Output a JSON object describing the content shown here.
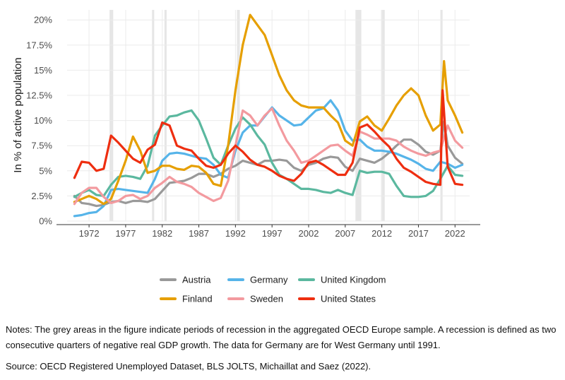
{
  "chart_data": {
    "type": "line",
    "title": "",
    "xlabel": "",
    "ylabel": "In % of active population",
    "xlim": [
      1969,
      2024
    ],
    "ylim": [
      0,
      21
    ],
    "x_ticks": [
      1972,
      1977,
      1982,
      1987,
      1992,
      1997,
      2002,
      2007,
      2012,
      2017,
      2022
    ],
    "y_ticks": [
      0,
      2.5,
      5,
      7.5,
      10,
      12.5,
      15,
      17.5,
      20
    ],
    "y_tick_labels": [
      "0%",
      "2.5%",
      "5%",
      "7.5%",
      "10%",
      "12.5%",
      "15%",
      "17.5%",
      "20%"
    ],
    "grid": true,
    "legend_position": "bottom",
    "recessions": [
      [
        1974.8,
        1975.3
      ],
      [
        1980.6,
        1980.9
      ],
      [
        1982.3,
        1982.6
      ],
      [
        1992.2,
        1992.6
      ],
      [
        2008.4,
        2009.2
      ],
      [
        2011.9,
        2012.4
      ],
      [
        2020.0,
        2020.3
      ]
    ],
    "series": [
      {
        "name": "Austria",
        "color": "#999999",
        "x": [
          1970,
          1971,
          1972,
          1973,
          1974,
          1975,
          1976,
          1977,
          1978,
          1979,
          1980,
          1981,
          1982,
          1983,
          1984,
          1985,
          1986,
          1987,
          1988,
          1989,
          1990,
          1991,
          1992,
          1993,
          1994,
          1995,
          1996,
          1997,
          1998,
          1999,
          2000,
          2001,
          2002,
          2003,
          2004,
          2005,
          2006,
          2007,
          2008,
          2009,
          2010,
          2011,
          2012,
          2013,
          2014,
          2015,
          2016,
          2017,
          2018,
          2019,
          2020,
          2020.5,
          2021,
          2022,
          2023
        ],
        "y": [
          2.5,
          1.8,
          1.7,
          1.5,
          1.6,
          1.9,
          2.0,
          1.8,
          2.0,
          2.0,
          1.9,
          2.2,
          3.0,
          3.8,
          3.9,
          4.0,
          4.3,
          4.7,
          4.7,
          4.4,
          4.7,
          5.2,
          5.5,
          6.0,
          5.8,
          5.6,
          6.0,
          6.0,
          6.1,
          6.0,
          5.3,
          5.0,
          5.6,
          5.8,
          6.2,
          6.4,
          6.3,
          5.4,
          5.0,
          6.2,
          6.0,
          5.8,
          6.2,
          6.8,
          7.5,
          8.1,
          8.1,
          7.6,
          6.9,
          6.6,
          7.0,
          9.9,
          7.5,
          6.3,
          5.7
        ]
      },
      {
        "name": "Germany",
        "color": "#56b4e9",
        "x": [
          1970,
          1971,
          1972,
          1973,
          1974,
          1975,
          1976,
          1977,
          1978,
          1979,
          1980,
          1981,
          1982,
          1983,
          1984,
          1985,
          1986,
          1987,
          1988,
          1989,
          1990,
          1991,
          1992,
          1993,
          1994,
          1995,
          1996,
          1997,
          1998,
          1999,
          2000,
          2001,
          2002,
          2003,
          2004,
          2005,
          2006,
          2007,
          2008,
          2009,
          2010,
          2011,
          2012,
          2013,
          2014,
          2015,
          2016,
          2017,
          2018,
          2019,
          2020,
          2021,
          2022,
          2023
        ],
        "y": [
          0.5,
          0.6,
          0.8,
          0.9,
          1.5,
          3.1,
          3.2,
          3.1,
          3.0,
          2.9,
          2.8,
          4.2,
          6.0,
          6.7,
          6.8,
          6.7,
          6.5,
          6.3,
          6.2,
          5.6,
          4.6,
          4.3,
          7.0,
          8.8,
          9.5,
          9.5,
          10.4,
          11.3,
          10.5,
          10.0,
          9.5,
          9.6,
          10.3,
          11.0,
          11.2,
          12.0,
          11.0,
          9.0,
          8.0,
          8.1,
          7.4,
          7.0,
          7.0,
          6.9,
          6.7,
          6.4,
          6.1,
          5.7,
          5.2,
          5.0,
          5.9,
          5.7,
          5.3,
          5.6
        ]
      },
      {
        "name": "United Kingdom",
        "color": "#5bb89f",
        "x": [
          1970,
          1971,
          1972,
          1973,
          1974,
          1975,
          1976,
          1977,
          1978,
          1979,
          1980,
          1981,
          1982,
          1983,
          1984,
          1985,
          1986,
          1987,
          1988,
          1989,
          1990,
          1991,
          1992,
          1993,
          1994,
          1995,
          1996,
          1997,
          1998,
          1999,
          2000,
          2001,
          2002,
          2003,
          2004,
          2005,
          2006,
          2007,
          2008,
          2009,
          2010,
          2011,
          2012,
          2013,
          2014,
          2015,
          2016,
          2017,
          2018,
          2019,
          2020,
          2021,
          2022,
          2023
        ],
        "y": [
          2.4,
          2.8,
          3.1,
          2.6,
          2.5,
          3.6,
          4.4,
          4.5,
          4.4,
          4.2,
          5.5,
          8.5,
          9.5,
          10.4,
          10.5,
          10.8,
          11.0,
          10.0,
          8.2,
          6.3,
          5.6,
          7.5,
          9.2,
          10.3,
          9.6,
          8.5,
          7.6,
          5.8,
          4.6,
          4.2,
          3.7,
          3.2,
          3.2,
          3.1,
          2.9,
          2.8,
          3.1,
          2.8,
          2.6,
          5.0,
          4.8,
          4.9,
          4.9,
          4.7,
          3.5,
          2.5,
          2.4,
          2.4,
          2.5,
          3.0,
          4.2,
          5.5,
          4.6,
          4.5
        ]
      },
      {
        "name": "Finland",
        "color": "#e69f00",
        "x": [
          1970,
          1971,
          1972,
          1973,
          1974,
          1975,
          1976,
          1977,
          1978,
          1979,
          1980,
          1981,
          1982,
          1983,
          1984,
          1985,
          1986,
          1987,
          1988,
          1989,
          1990,
          1991,
          1992,
          1993,
          1994,
          1995,
          1996,
          1997,
          1998,
          1999,
          2000,
          2001,
          2002,
          2003,
          2004,
          2005,
          2006,
          2007,
          2008,
          2009,
          2010,
          2011,
          2012,
          2013,
          2014,
          2015,
          2016,
          2017,
          2018,
          2019,
          2020,
          2020.5,
          2021,
          2022,
          2023
        ],
        "y": [
          1.9,
          2.2,
          2.5,
          2.2,
          1.7,
          2.2,
          4.0,
          6.0,
          8.4,
          7.0,
          4.8,
          5.0,
          5.5,
          5.5,
          5.2,
          5.1,
          5.5,
          5.4,
          4.8,
          3.7,
          3.5,
          7.5,
          13.0,
          17.5,
          20.5,
          19.5,
          18.5,
          16.5,
          14.5,
          13.0,
          12.0,
          11.5,
          11.3,
          11.3,
          11.3,
          10.5,
          9.8,
          8.0,
          7.5,
          9.9,
          10.4,
          9.5,
          9.0,
          10.2,
          11.5,
          12.5,
          13.2,
          12.5,
          10.5,
          9.0,
          9.6,
          15.9,
          12.0,
          10.5,
          8.8
        ]
      },
      {
        "name": "Sweden",
        "color": "#f39a9f",
        "x": [
          1970,
          1971,
          1972,
          1973,
          1974,
          1975,
          1976,
          1977,
          1978,
          1979,
          1980,
          1981,
          1982,
          1983,
          1984,
          1985,
          1986,
          1987,
          1988,
          1989,
          1990,
          1991,
          1992,
          1993,
          1994,
          1995,
          1996,
          1997,
          1998,
          1999,
          2000,
          2001,
          2002,
          2003,
          2004,
          2005,
          2006,
          2007,
          2008,
          2009,
          2010,
          2011,
          2012,
          2013,
          2014,
          2015,
          2016,
          2017,
          2018,
          2019,
          2020,
          2021,
          2022,
          2023
        ],
        "y": [
          1.7,
          2.8,
          3.3,
          3.3,
          2.4,
          1.8,
          2.0,
          2.5,
          2.6,
          2.2,
          2.5,
          3.3,
          3.8,
          4.4,
          3.9,
          3.7,
          3.4,
          2.8,
          2.4,
          2.0,
          2.3,
          4.0,
          7.5,
          11.0,
          10.5,
          9.5,
          10.5,
          11.2,
          9.5,
          8.0,
          7.0,
          5.8,
          6.0,
          6.5,
          7.0,
          7.5,
          7.6,
          7.0,
          6.5,
          8.9,
          8.6,
          8.2,
          8.2,
          8.2,
          8.0,
          7.4,
          7.0,
          6.7,
          6.5,
          6.8,
          7.0,
          9.5,
          8.0,
          7.3
        ]
      },
      {
        "name": "United States",
        "color": "#ee2e10",
        "x": [
          1970,
          1971,
          1972,
          1973,
          1974,
          1975,
          1976,
          1977,
          1978,
          1979,
          1980,
          1981,
          1982,
          1983,
          1984,
          1985,
          1986,
          1987,
          1988,
          1989,
          1990,
          1991,
          1992,
          1993,
          1994,
          1995,
          1996,
          1997,
          1998,
          1999,
          2000,
          2001,
          2002,
          2003,
          2004,
          2005,
          2006,
          2007,
          2008,
          2009,
          2010,
          2011,
          2012,
          2013,
          2014,
          2015,
          2016,
          2017,
          2018,
          2019,
          2020,
          2020.3,
          2021,
          2022,
          2023
        ],
        "y": [
          4.3,
          5.9,
          5.8,
          5.0,
          5.2,
          8.5,
          7.8,
          7.0,
          6.2,
          5.8,
          7.1,
          7.6,
          9.8,
          9.5,
          7.5,
          7.2,
          7.0,
          6.2,
          5.5,
          5.3,
          5.6,
          6.7,
          7.5,
          6.9,
          6.1,
          5.6,
          5.4,
          5.0,
          4.5,
          4.2,
          4.0,
          4.7,
          5.8,
          6.0,
          5.6,
          5.1,
          4.6,
          4.6,
          5.8,
          9.3,
          9.6,
          8.9,
          8.1,
          7.4,
          6.2,
          5.3,
          4.9,
          4.4,
          3.9,
          3.7,
          3.6,
          13.0,
          5.4,
          3.7,
          3.6
        ]
      }
    ]
  },
  "legend": {
    "rows": [
      [
        "Austria",
        "Germany",
        "United Kingdom"
      ],
      [
        "Finland",
        "Sweden",
        "United States"
      ]
    ]
  },
  "notes": "Notes: The grey areas in the figure indicate periods of recession in the aggregated OECD Europe sample. A recession is defined as two consecutive quarters of negative real GDP growth. The data for Germany are for West Germany until 1991.",
  "source": "Source: OECD Registered Unemployed Dataset, BLS JOLTS, Michaillat and Saez (2022)."
}
